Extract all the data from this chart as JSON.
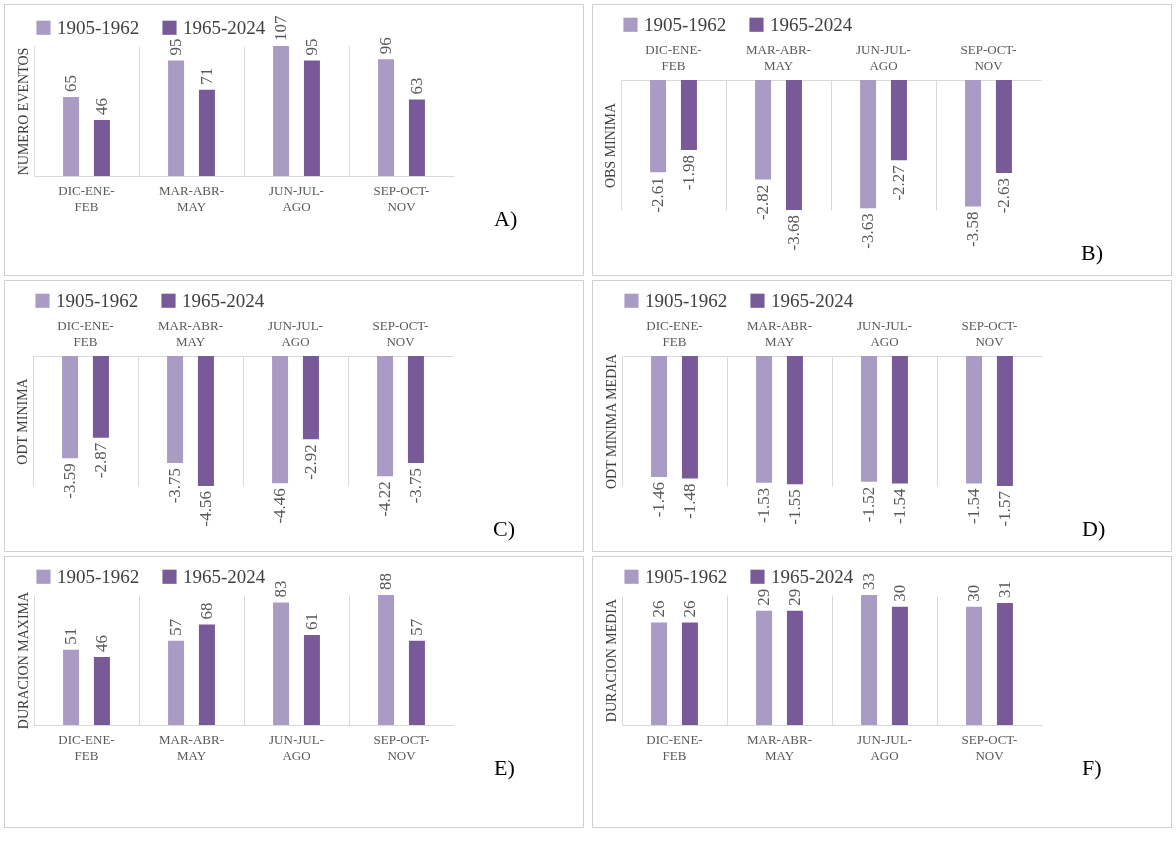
{
  "chart_data": [
    {
      "type": "bar",
      "ylabel": "NUMERO EVENTOS",
      "categories": [
        "DIC-ENE-FEB",
        "MAR-ABR-MAY",
        "JUN-JUL-AGO",
        "SEP-OCT-NOV"
      ],
      "series": [
        {
          "name": "1905-1962",
          "color": "#a99bc3",
          "values": [
            65,
            95,
            107,
            96
          ]
        },
        {
          "name": "1965-2024",
          "color": "#775a97",
          "values": [
            46,
            71,
            95,
            63
          ]
        }
      ],
      "data_labels": true,
      "legend": "top",
      "grid": "x",
      "tick_labels": "x",
      "annotations": [
        "A)"
      ]
    },
    {
      "type": "bar",
      "ylabel": "OBS MINIMA",
      "categories": [
        "DIC-ENE-FEB",
        "MAR-ABR-MAY",
        "JUN-JUL-AGO",
        "SEP-OCT-NOV"
      ],
      "series": [
        {
          "name": "1905-1962",
          "color": "#a99bc3",
          "values": [
            -2.61,
            -2.82,
            -3.63,
            -3.58
          ]
        },
        {
          "name": "1965-2024",
          "color": "#775a97",
          "values": [
            -1.98,
            -3.68,
            -2.27,
            -2.63
          ]
        }
      ],
      "data_labels": true,
      "legend": "top",
      "grid": "x",
      "tick_labels": "x",
      "annotations": [
        "B)"
      ]
    },
    {
      "type": "bar",
      "ylabel": "ODT MINIMA",
      "categories": [
        "DIC-ENE-FEB",
        "MAR-ABR-MAY",
        "JUN-JUL-AGO",
        "SEP-OCT-NOV"
      ],
      "series": [
        {
          "name": "1905-1962",
          "color": "#a99bc3",
          "values": [
            -3.59,
            -3.75,
            -4.46,
            -4.22
          ]
        },
        {
          "name": "1965-2024",
          "color": "#775a97",
          "values": [
            -2.87,
            -4.56,
            -2.92,
            -3.75
          ]
        }
      ],
      "data_labels": true,
      "legend": "top",
      "grid": "x",
      "tick_labels": "x",
      "annotations": [
        "C)"
      ]
    },
    {
      "type": "bar",
      "ylabel": "ODT MINIMA MEDIA",
      "categories": [
        "DIC-ENE-FEB",
        "MAR-ABR-MAY",
        "JUN-JUL-AGO",
        "SEP-OCT-NOV"
      ],
      "series": [
        {
          "name": "1905-1962",
          "color": "#a99bc3",
          "values": [
            -1.46,
            -1.53,
            -1.52,
            -1.54
          ]
        },
        {
          "name": "1965-2024",
          "color": "#775a97",
          "values": [
            -1.48,
            -1.55,
            -1.54,
            -1.57
          ]
        }
      ],
      "data_labels": true,
      "legend": "top",
      "grid": "x",
      "tick_labels": "x",
      "annotations": [
        "D)"
      ]
    },
    {
      "type": "bar",
      "ylabel": "DURACION MAXIMA",
      "categories": [
        "DIC-ENE-FEB",
        "MAR-ABR-MAY",
        "JUN-JUL-AGO",
        "SEP-OCT-NOV"
      ],
      "series": [
        {
          "name": "1905-1962",
          "color": "#a99bc3",
          "values": [
            51,
            57,
            83,
            88
          ]
        },
        {
          "name": "1965-2024",
          "color": "#775a97",
          "values": [
            46,
            68,
            61,
            57
          ]
        }
      ],
      "data_labels": true,
      "legend": "top",
      "grid": "x",
      "tick_labels": "x",
      "annotations": [
        "E)"
      ]
    },
    {
      "type": "bar",
      "ylabel": "DURACION MEDIA",
      "categories": [
        "DIC-ENE-FEB",
        "MAR-ABR-MAY",
        "JUN-JUL-AGO",
        "SEP-OCT-NOV"
      ],
      "series": [
        {
          "name": "1905-1962",
          "color": "#a99bc3",
          "values": [
            26,
            29,
            33,
            30
          ]
        },
        {
          "name": "1965-2024",
          "color": "#775a97",
          "values": [
            26,
            29,
            30,
            31
          ]
        }
      ],
      "data_labels": true,
      "legend": "top",
      "grid": "x",
      "tick_labels": "x",
      "annotations": [
        "F)"
      ]
    }
  ]
}
